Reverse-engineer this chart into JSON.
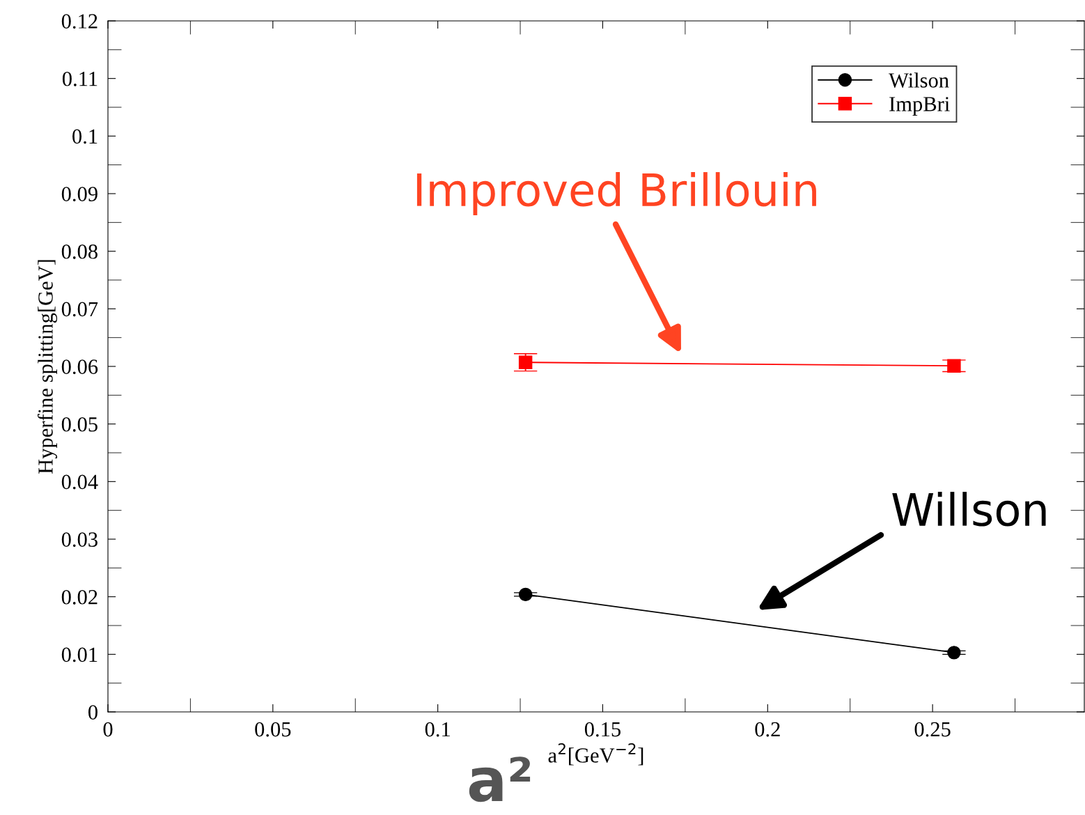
{
  "chart_data": {
    "type": "line",
    "xlabel": "a$^{2}$[GeV$^{−2}$]",
    "ylabel": "Hyperfine splitting[GeV]",
    "x": [
      0.1266,
      0.2565
    ],
    "series": [
      {
        "name": "Wilson",
        "color": "#000000",
        "marker": "circle",
        "values": [
          0.0204,
          0.0103
        ],
        "errors": [
          0.0003,
          0.0003
        ]
      },
      {
        "name": "ImpBri",
        "color": "#ff0000",
        "marker": "square",
        "values": [
          0.0607,
          0.0601
        ],
        "errors": [
          0.0015,
          0.001
        ]
      }
    ],
    "xlim": [
      0,
      0.296
    ],
    "xticks": [
      0,
      0.05,
      0.1,
      0.15,
      0.2,
      0.25
    ],
    "ylim": [
      0,
      0.12
    ],
    "yticks": [
      0,
      0.01,
      0.02,
      0.03,
      0.04,
      0.05,
      0.06,
      0.07,
      0.08,
      0.09,
      0.1,
      0.11,
      0.12
    ],
    "legend": "top right",
    "grid": false,
    "annotations": [
      "Improved Brillouin",
      "Willson",
      "a²"
    ]
  }
}
